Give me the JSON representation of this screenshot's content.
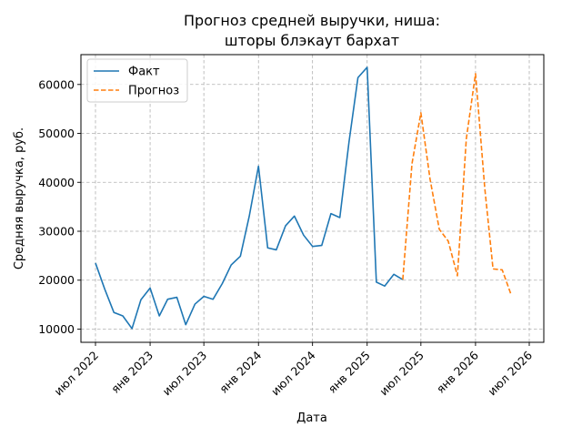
{
  "chart_data": {
    "type": "line",
    "title": "Прогноз средней выручки, ниша:\nшторы блэкаут бархат",
    "xlabel": "Дата",
    "ylabel": "Средняя выручка, руб.",
    "xlim": [
      "2022-05-13",
      "2026-08-19"
    ],
    "ylim": [
      7300,
      66100
    ],
    "x_ticks": [
      {
        "date": "2022-07-01",
        "label": "июл 2022"
      },
      {
        "date": "2023-01-01",
        "label": "янв 2023"
      },
      {
        "date": "2023-07-01",
        "label": "июл 2023"
      },
      {
        "date": "2024-01-01",
        "label": "янв 2024"
      },
      {
        "date": "2024-07-01",
        "label": "июл 2024"
      },
      {
        "date": "2025-01-01",
        "label": "янв 2025"
      },
      {
        "date": "2025-07-01",
        "label": "июл 2025"
      },
      {
        "date": "2026-01-01",
        "label": "янв 2026"
      },
      {
        "date": "2026-07-01",
        "label": "июл 2026"
      }
    ],
    "y_ticks": [
      {
        "value": 10000,
        "label": "10000"
      },
      {
        "value": 20000,
        "label": "20000"
      },
      {
        "value": 30000,
        "label": "30000"
      },
      {
        "value": 40000,
        "label": "40000"
      },
      {
        "value": 50000,
        "label": "50000"
      },
      {
        "value": 60000,
        "label": "60000"
      }
    ],
    "grid": true,
    "legend": {
      "placement": "top-left"
    },
    "series": [
      {
        "name": "Факт",
        "color": "#1f77b4",
        "dash": "solid",
        "x": [
          "2022-07-01",
          "2022-08-01",
          "2022-09-01",
          "2022-10-01",
          "2022-11-01",
          "2022-12-01",
          "2023-01-01",
          "2023-02-01",
          "2023-03-01",
          "2023-04-01",
          "2023-05-01",
          "2023-06-01",
          "2023-07-01",
          "2023-08-01",
          "2023-09-01",
          "2023-10-01",
          "2023-11-01",
          "2023-12-01",
          "2024-01-01",
          "2024-02-01",
          "2024-03-01",
          "2024-04-01",
          "2024-05-01",
          "2024-06-01",
          "2024-07-01",
          "2024-08-01",
          "2024-09-01",
          "2024-10-01",
          "2024-11-01",
          "2024-12-01",
          "2025-01-01",
          "2025-02-01",
          "2025-03-01",
          "2025-04-01",
          "2025-05-01"
        ],
        "y": [
          23500,
          18200,
          13400,
          12700,
          10100,
          16000,
          18400,
          12700,
          16100,
          16500,
          10900,
          15100,
          16700,
          16100,
          19300,
          23100,
          24900,
          33100,
          43300,
          26600,
          26200,
          31100,
          33100,
          29200,
          26900,
          27100,
          33600,
          32800,
          48300,
          61400,
          63500,
          19600,
          18800,
          21200,
          20100
        ]
      },
      {
        "name": "Прогноз",
        "color": "#ff7f0e",
        "dash": "dashed",
        "x": [
          "2025-05-01",
          "2025-06-01",
          "2025-07-01",
          "2025-08-01",
          "2025-09-01",
          "2025-10-01",
          "2025-11-01",
          "2025-12-01",
          "2026-01-01",
          "2026-02-01",
          "2026-03-01",
          "2026-04-01",
          "2026-05-01"
        ],
        "y": [
          20100,
          43800,
          54200,
          40600,
          30400,
          28000,
          20900,
          48900,
          62200,
          38900,
          22300,
          22100,
          17000
        ]
      }
    ]
  }
}
